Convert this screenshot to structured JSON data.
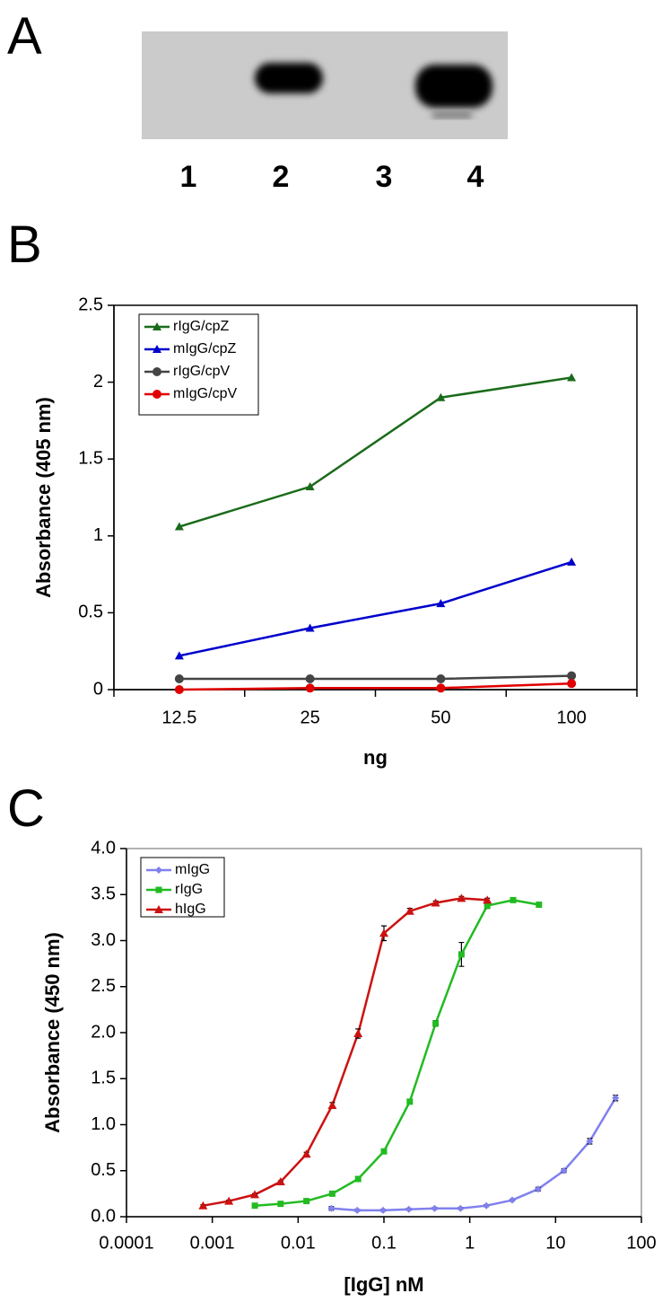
{
  "panel_labels": [
    "A",
    "B",
    "C"
  ],
  "blot": {
    "lanes": [
      "1",
      "2",
      "3",
      "4"
    ]
  },
  "chart_data": [
    {
      "type": "line",
      "x_label": "ng",
      "y_label": "Absorbance (405 nm)",
      "categories": [
        "12.5",
        "25",
        "50",
        "100"
      ],
      "ylim": [
        0,
        2.5
      ],
      "yticks": [
        0,
        0.5,
        1,
        1.5,
        2,
        2.5
      ],
      "legend": "upper left",
      "series": [
        {
          "name": "rIgG/cpZ",
          "color": "#1a6b1a",
          "marker": "triangle",
          "values": [
            1.06,
            1.32,
            1.9,
            2.03
          ]
        },
        {
          "name": "mIgG/cpZ",
          "color": "#0000cc",
          "marker": "triangle",
          "values": [
            0.22,
            0.4,
            0.56,
            0.83
          ]
        },
        {
          "name": "rIgG/cpV",
          "color": "#444444",
          "marker": "circle",
          "values": [
            0.07,
            0.07,
            0.07,
            0.09
          ]
        },
        {
          "name": "mIgG/cpV",
          "color": "#e00000",
          "marker": "circle",
          "values": [
            0.0,
            0.01,
            0.01,
            0.04
          ]
        }
      ]
    },
    {
      "type": "line",
      "x_label": "[IgG] nM",
      "y_label": "Absorbance (450 nm)",
      "xscale": "log",
      "xlim": [
        0.0001,
        100
      ],
      "xticks": [
        0.0001,
        0.001,
        0.01,
        0.1,
        1,
        10,
        100
      ],
      "ylim": [
        0,
        4
      ],
      "yticks": [
        {
          "value": 0,
          "label": "0.0"
        },
        0.5,
        {
          "value": 1,
          "label": "1.0"
        },
        1.5,
        {
          "value": 2,
          "label": "2.0"
        },
        2.5,
        {
          "value": 3,
          "label": "3.0"
        },
        3.5,
        {
          "value": 4,
          "label": "4.0"
        }
      ],
      "legend": "upper left",
      "series": [
        {
          "name": "mIgG",
          "color": "#8080ee",
          "marker": "diamond",
          "x": [
            0.0244,
            0.0488,
            0.0977,
            0.195,
            0.39,
            0.78,
            1.56,
            3.125,
            6.25,
            12.5,
            25,
            50
          ],
          "values": [
            0.09,
            0.07,
            0.07,
            0.08,
            0.09,
            0.09,
            0.12,
            0.18,
            0.3,
            0.5,
            0.82,
            1.29
          ],
          "errors": [
            0.02,
            0.01,
            0.01,
            0.01,
            0.01,
            0.01,
            0.01,
            0.01,
            0.02,
            0.02,
            0.03,
            0.03
          ]
        },
        {
          "name": "rIgG",
          "color": "#22bb22",
          "marker": "square",
          "x": [
            0.00313,
            0.00625,
            0.0125,
            0.025,
            0.05,
            0.1,
            0.2,
            0.4,
            0.8,
            1.6,
            3.2,
            6.4
          ],
          "values": [
            0.12,
            0.14,
            0.17,
            0.25,
            0.41,
            0.71,
            1.25,
            2.1,
            2.85,
            3.38,
            3.44,
            3.39
          ],
          "errors": [
            0.01,
            0.01,
            0.01,
            0.01,
            0.02,
            0.02,
            0.02,
            0.03,
            0.13,
            0.03,
            0.02,
            0.02
          ]
        },
        {
          "name": "hIgG",
          "color": "#cc1111",
          "marker": "triangle",
          "x": [
            0.00078,
            0.00156,
            0.003125,
            0.00625,
            0.0125,
            0.025,
            0.05,
            0.1,
            0.2,
            0.4,
            0.8,
            1.6
          ],
          "values": [
            0.12,
            0.17,
            0.24,
            0.38,
            0.68,
            1.21,
            1.99,
            3.08,
            3.32,
            3.41,
            3.46,
            3.44
          ],
          "errors": [
            0.01,
            0.01,
            0.01,
            0.01,
            0.02,
            0.03,
            0.05,
            0.08,
            0.03,
            0.02,
            0.02,
            0.02
          ]
        }
      ]
    }
  ]
}
